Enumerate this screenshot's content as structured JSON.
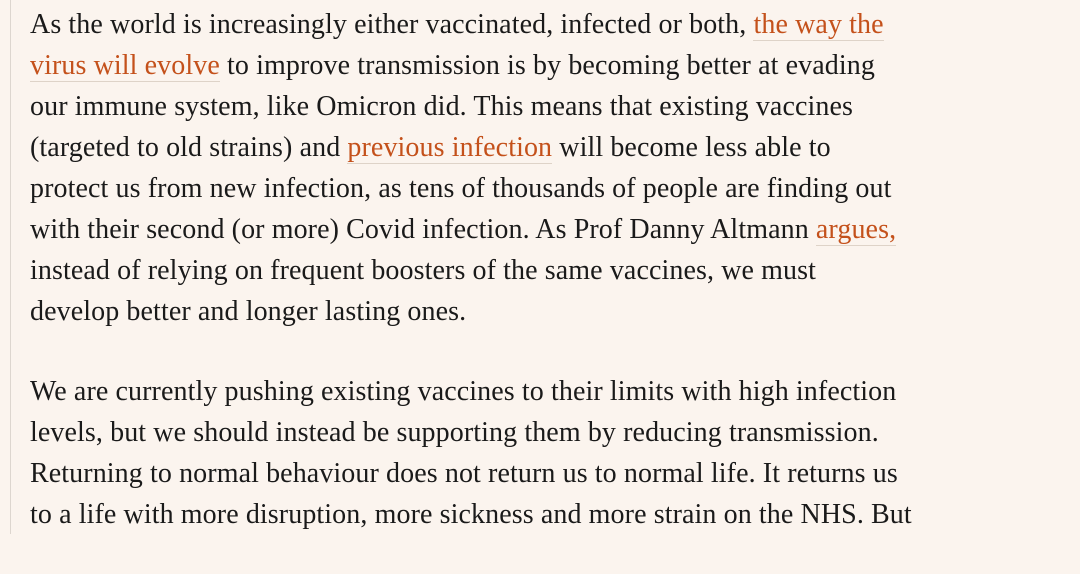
{
  "page": {
    "colors": {
      "background": "#fbf4ee",
      "text": "#1a1a1a",
      "link": "#c4511b",
      "link_underline": "#ded3c8",
      "column_rule": "#ddd6cf"
    }
  },
  "article": {
    "paragraphs": [
      {
        "lines": [
          [
            {
              "text": "As the world is increasingly either vaccinated, infected or both, ",
              "link": false
            },
            {
              "text": "the way the",
              "link": true
            }
          ],
          [
            {
              "text": "virus will evolve",
              "link": true
            },
            {
              "text": " to improve transmission is by becoming better at evading",
              "link": false
            }
          ],
          [
            {
              "text": "our immune system, like Omicron did. This means that existing vaccines",
              "link": false
            }
          ],
          [
            {
              "text": "(targeted to old strains) and ",
              "link": false
            },
            {
              "text": "previous infection",
              "link": true
            },
            {
              "text": " will become less able to",
              "link": false
            }
          ],
          [
            {
              "text": "protect us from new infection, as tens of thousands of people are finding out",
              "link": false
            }
          ],
          [
            {
              "text": "with their second (or more) Covid infection. As Prof Danny Altmann ",
              "link": false
            },
            {
              "text": "argues,",
              "link": true
            }
          ],
          [
            {
              "text": "instead of relying on frequent boosters of the same vaccines, we must",
              "link": false
            }
          ],
          [
            {
              "text": "develop better and longer lasting ones.",
              "link": false
            }
          ]
        ]
      },
      {
        "lines": [
          [
            {
              "text": "We are currently pushing existing vaccines to their limits with high infection",
              "link": false
            }
          ],
          [
            {
              "text": "levels, but we should instead be supporting them by reducing transmission.",
              "link": false
            }
          ],
          [
            {
              "text": "Returning to normal behaviour does not return us to normal life. It returns us",
              "link": false
            }
          ],
          [
            {
              "text": "to a life with more disruption, more sickness and more strain on the NHS. But",
              "link": false
            }
          ]
        ]
      }
    ]
  }
}
